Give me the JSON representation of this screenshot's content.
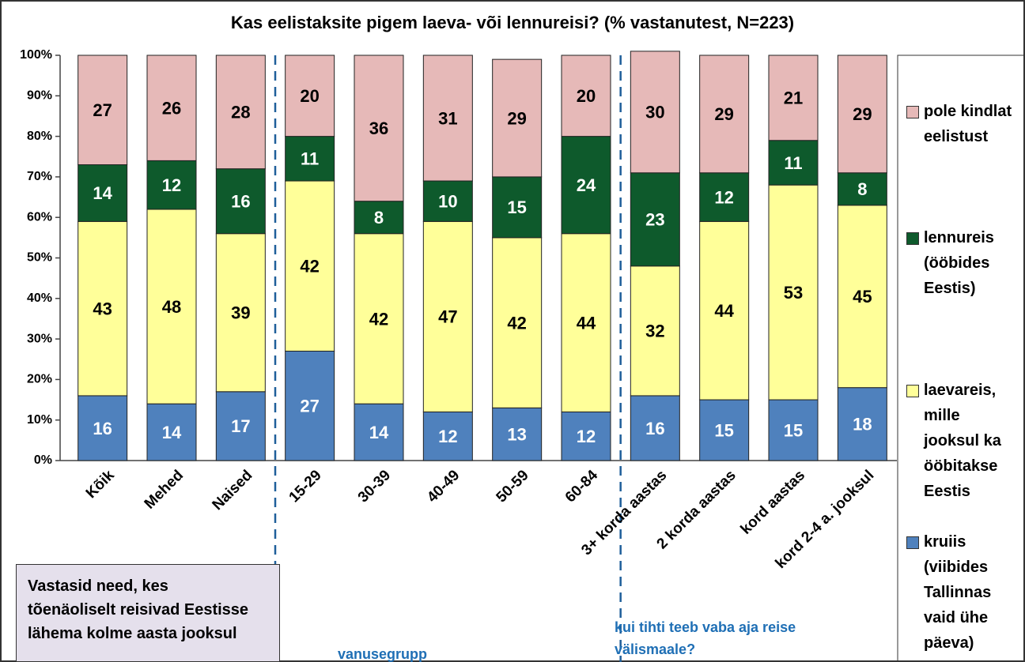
{
  "chart_data": {
    "type": "stacked_bar",
    "title": "Kas eelistaksite pigem laeva- või lennureisi? (% vastanutest, N=223)",
    "categories": [
      "Kõik",
      "Mehed",
      "Naised",
      "15-29",
      "30-39",
      "40-49",
      "50-59",
      "60-84",
      "3+ korda aastas",
      "2 korda aastas",
      "kord aastas",
      "kord 2-4 a. jooksul"
    ],
    "series": [
      {
        "name": "kruiis (viibides Tallinnas vaid ühe päeva)",
        "color": "#4f81bd",
        "values": [
          16,
          14,
          17,
          27,
          14,
          12,
          13,
          12,
          16,
          15,
          15,
          18
        ]
      },
      {
        "name": "laevareis, mille jooksul ka ööbitakse Eestis",
        "color": "#ffff99",
        "values": [
          43,
          48,
          39,
          42,
          42,
          47,
          42,
          44,
          32,
          44,
          53,
          45
        ]
      },
      {
        "name": "lennureis (ööbides Eestis)",
        "color": "#0e5a2c",
        "values": [
          14,
          12,
          16,
          11,
          8,
          10,
          15,
          24,
          23,
          12,
          11,
          8
        ]
      },
      {
        "name": "pole kindlat eelistust",
        "color": "#e6b9b8",
        "values": [
          27,
          26,
          28,
          20,
          36,
          31,
          29,
          20,
          30,
          29,
          21,
          29
        ]
      }
    ],
    "ylim": [
      0,
      100
    ],
    "yticks": [
      {
        "value": 0,
        "label": "0%"
      },
      {
        "value": 10,
        "label": "10%"
      },
      {
        "value": 20,
        "label": "20%"
      },
      {
        "value": 30,
        "label": "30%"
      },
      {
        "value": 40,
        "label": "40%"
      },
      {
        "value": 50,
        "label": "50%"
      },
      {
        "value": 60,
        "label": "60%"
      },
      {
        "value": 70,
        "label": "70%"
      },
      {
        "value": 80,
        "label": "80%"
      },
      {
        "value": 90,
        "label": "90%"
      },
      {
        "value": 100,
        "label": "100%"
      }
    ],
    "legend": "right",
    "group_labels": [
      "vanusegrupp",
      "kui tihti teeb vaba aja reise välismaale?"
    ],
    "annotation": [
      "Vastasid need, kes",
      "tõenäoliselt reisivad Eestisse",
      "lähema kolme aasta jooksul"
    ]
  }
}
